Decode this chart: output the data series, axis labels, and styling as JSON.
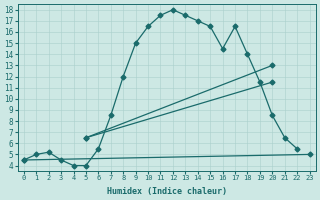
{
  "xlabel": "Humidex (Indice chaleur)",
  "xlim": [
    -0.5,
    23.5
  ],
  "ylim": [
    3.5,
    18.5
  ],
  "xticks": [
    0,
    1,
    2,
    3,
    4,
    5,
    6,
    7,
    8,
    9,
    10,
    11,
    12,
    13,
    14,
    15,
    16,
    17,
    18,
    19,
    20,
    21,
    22,
    23
  ],
  "yticks": [
    4,
    5,
    6,
    7,
    8,
    9,
    10,
    11,
    12,
    13,
    14,
    15,
    16,
    17,
    18
  ],
  "bg_color": "#cde8e4",
  "grid_color": "#aad0cc",
  "line_color": "#1a6b6b",
  "lines": [
    {
      "x": [
        0,
        1,
        2,
        3,
        4,
        5,
        6,
        7,
        8,
        9,
        10,
        11,
        12,
        13,
        14,
        15,
        16,
        17,
        18,
        19,
        20,
        21,
        22
      ],
      "y": [
        4.5,
        5.0,
        5.2,
        4.5,
        4.0,
        4.0,
        5.5,
        8.5,
        12.0,
        15.0,
        16.5,
        17.5,
        18.0,
        17.5,
        17.0,
        16.5,
        14.5,
        16.5,
        14.0,
        11.5,
        8.5,
        6.5,
        5.5
      ]
    },
    {
      "x": [
        5,
        20
      ],
      "y": [
        6.5,
        13.0
      ]
    },
    {
      "x": [
        5,
        20
      ],
      "y": [
        6.5,
        11.5
      ]
    },
    {
      "x": [
        0,
        23
      ],
      "y": [
        4.5,
        5.0
      ]
    }
  ],
  "marker": "D",
  "marker_size": 2.5,
  "linewidth": 0.9
}
